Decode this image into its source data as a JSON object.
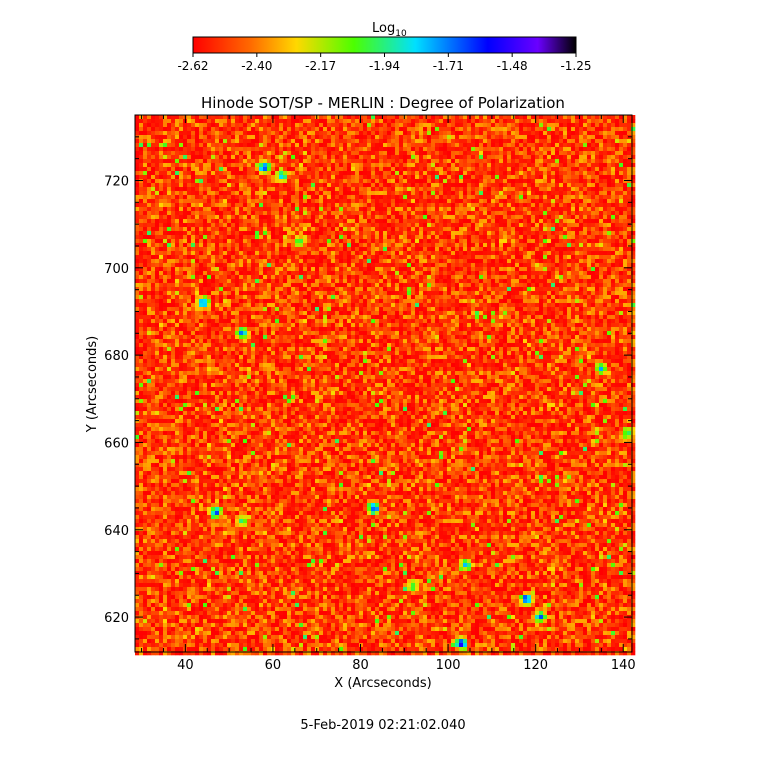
{
  "chart_data": {
    "type": "heatmap",
    "title": "Hinode SOT/SP - MERLIN : Degree of Polarization",
    "xlabel": "X (Arcseconds)",
    "ylabel": "Y (Arcseconds)",
    "xlim": [
      28.5,
      142
    ],
    "ylim": [
      612,
      735
    ],
    "xticks": [
      40,
      60,
      80,
      100,
      120,
      140
    ],
    "yticks": [
      620,
      640,
      660,
      680,
      700,
      720
    ],
    "colorbar": {
      "label_base": "Log",
      "label_sub": "10",
      "range": [
        -2.62,
        -1.25
      ],
      "ticks": [
        "-2.62",
        "-2.40",
        "-2.17",
        "-1.94",
        "-1.71",
        "-1.48",
        "-1.25"
      ],
      "colormap": "rainbow"
    },
    "value_distribution": {
      "typical_range": [
        -2.62,
        -2.3
      ],
      "peak_values": [
        -1.5,
        -1.3
      ]
    },
    "features": [
      {
        "x": 58,
        "y": 723,
        "value": -1.5
      },
      {
        "x": 62,
        "y": 721,
        "value": -1.7
      },
      {
        "x": 53,
        "y": 685,
        "value": -1.55
      },
      {
        "x": 44,
        "y": 692,
        "value": -1.5
      },
      {
        "x": 47,
        "y": 644,
        "value": -1.5
      },
      {
        "x": 83,
        "y": 645,
        "value": -1.5
      },
      {
        "x": 103,
        "y": 614,
        "value": -1.35
      },
      {
        "x": 121,
        "y": 620,
        "value": -1.6
      },
      {
        "x": 118,
        "y": 624,
        "value": -1.5
      },
      {
        "x": 104,
        "y": 632,
        "value": -1.7
      },
      {
        "x": 135,
        "y": 677,
        "value": -1.7
      },
      {
        "x": 141,
        "y": 662,
        "value": -1.8
      },
      {
        "x": 53,
        "y": 642,
        "value": -1.85
      },
      {
        "x": 92,
        "y": 627,
        "value": -1.9
      },
      {
        "x": 66,
        "y": 706,
        "value": -1.9
      }
    ]
  },
  "footer": {
    "timestamp": "5-Feb-2019 02:21:02.040"
  }
}
